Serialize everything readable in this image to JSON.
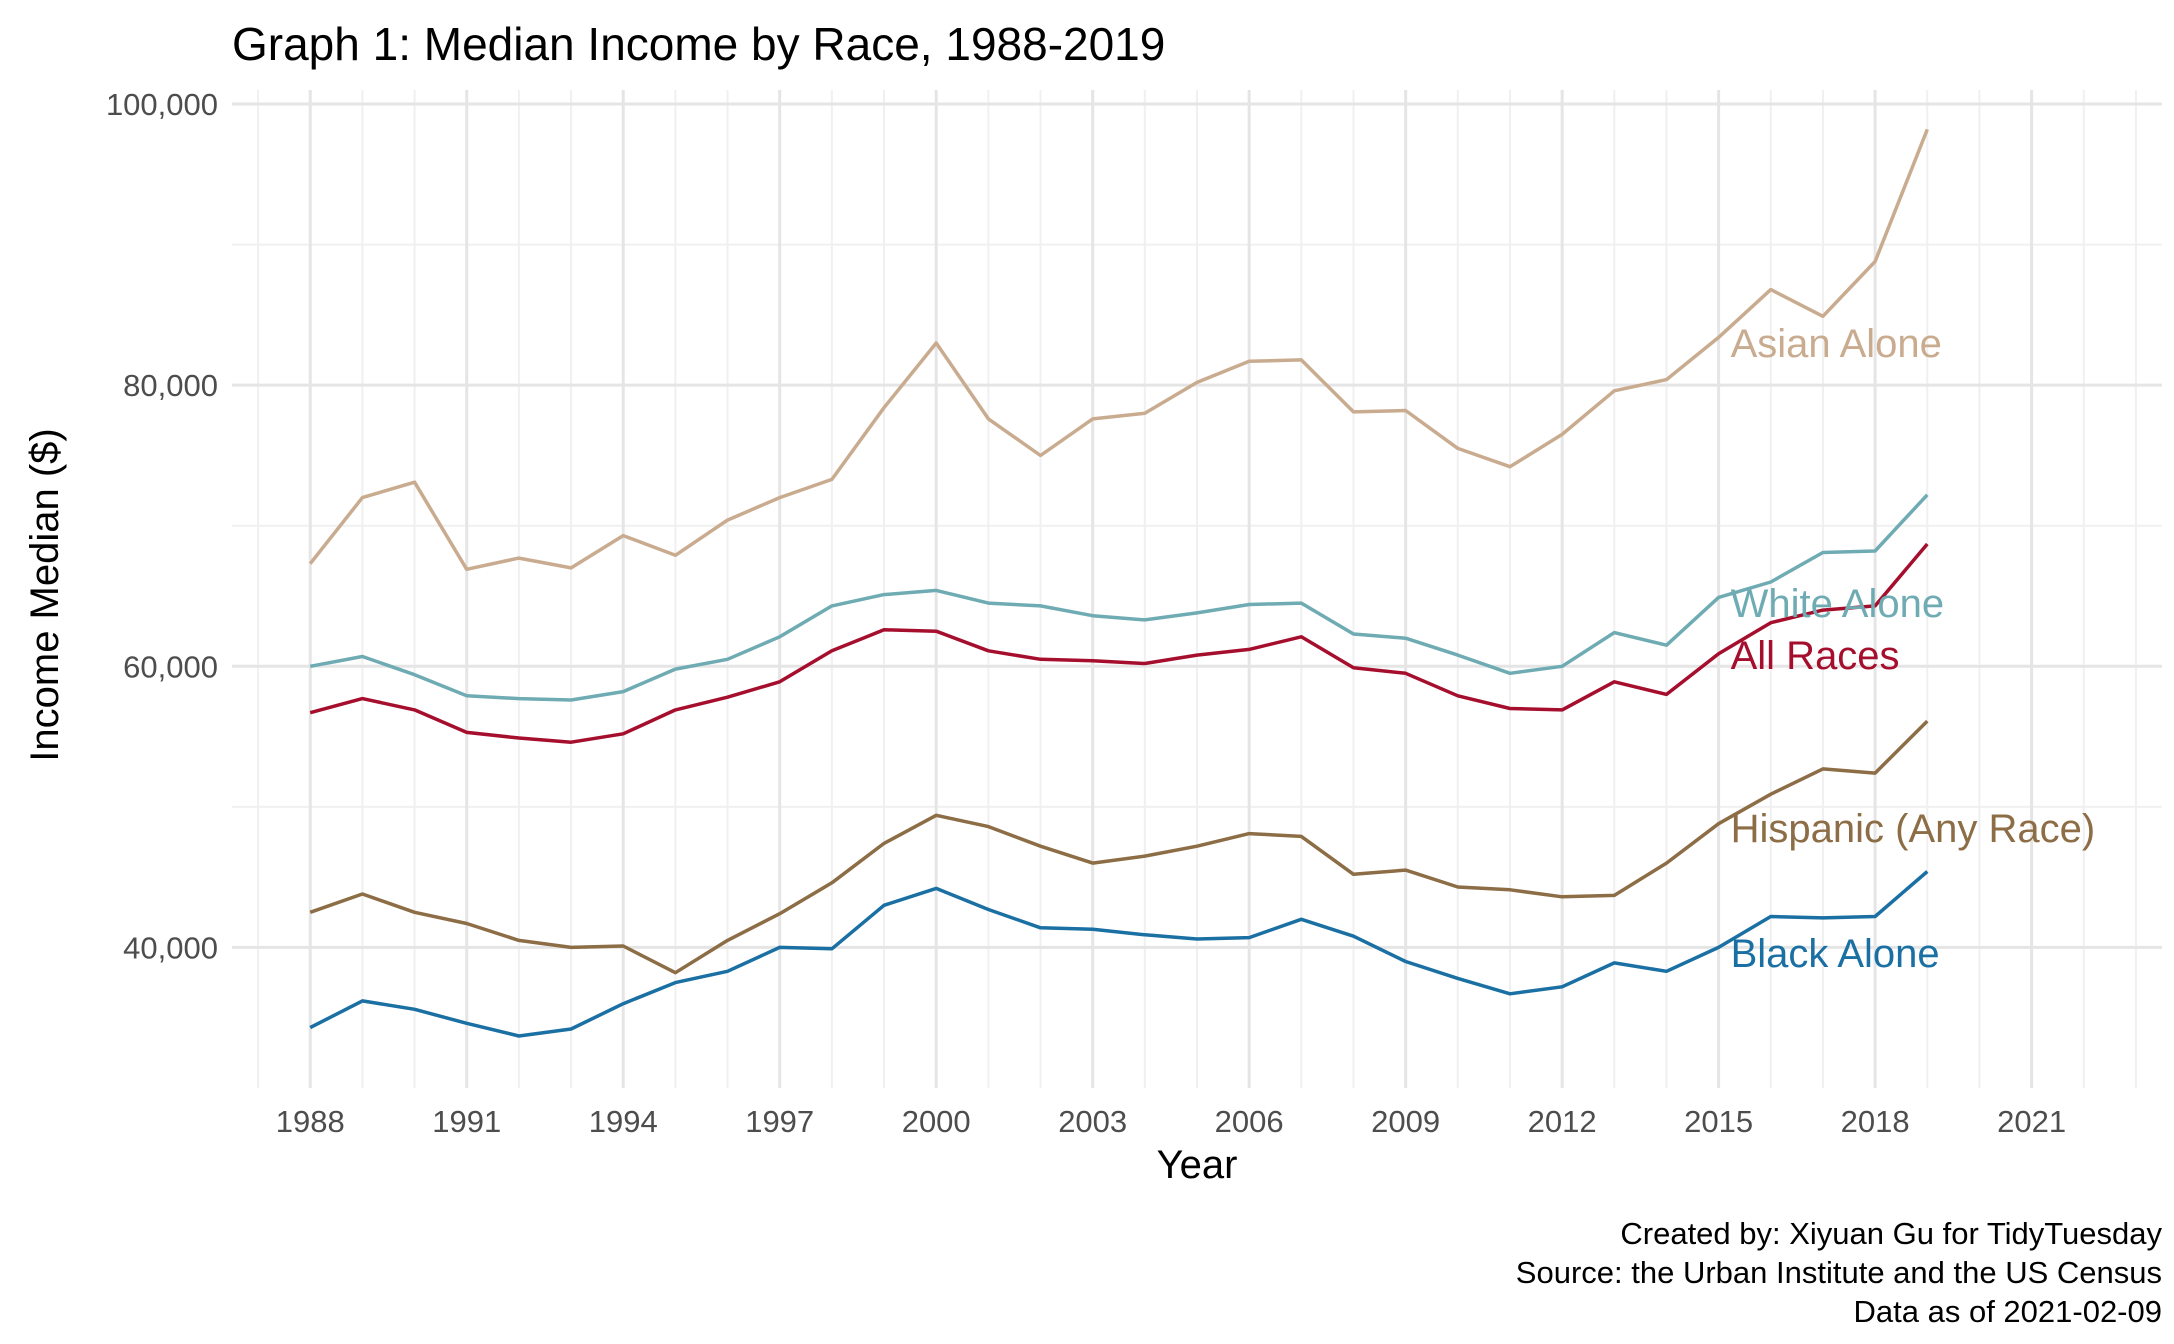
{
  "chart_data": {
    "type": "line",
    "title": "Graph 1: Median Income by Race, 1988-2019",
    "xlabel": "Year",
    "ylabel": "Income Median ($)",
    "xlim": [
      1986.5,
      2023.5
    ],
    "ylim": [
      30000,
      101000
    ],
    "x_ticks": [
      "1988",
      "1991",
      "1994",
      "1997",
      "2000",
      "2003",
      "2006",
      "2009",
      "2012",
      "2015",
      "2018",
      "2021"
    ],
    "y_ticks": [
      "40,000",
      "60,000",
      "80,000",
      "100,000"
    ],
    "grid": true,
    "legend": "direct labels at series ends",
    "x": [
      1988,
      1989,
      1990,
      1991,
      1992,
      1993,
      1994,
      1995,
      1996,
      1997,
      1998,
      1999,
      2000,
      2001,
      2002,
      2003,
      2004,
      2005,
      2006,
      2007,
      2008,
      2009,
      2010,
      2011,
      2012,
      2013,
      2014,
      2015,
      2016,
      2017,
      2018,
      2019
    ],
    "series": [
      {
        "name": "Asian Alone",
        "color": "#c9ab8f",
        "label_value": 83000,
        "values": [
          67300,
          72000,
          73100,
          66900,
          67700,
          67000,
          69300,
          67900,
          70400,
          72000,
          73300,
          78400,
          83000,
          77600,
          75000,
          77600,
          78000,
          80200,
          81700,
          81800,
          78100,
          78200,
          75500,
          74200,
          76500,
          79600,
          80400,
          83400,
          86800,
          84900,
          88800,
          98200
        ]
      },
      {
        "name": "White Alone",
        "color": "#6fabb3",
        "label_value": 64500,
        "values": [
          60000,
          60700,
          59400,
          57900,
          57700,
          57600,
          58200,
          59800,
          60500,
          62100,
          64300,
          65100,
          65400,
          64500,
          64300,
          63600,
          63300,
          63800,
          64400,
          64500,
          62300,
          62000,
          60800,
          59500,
          60000,
          62400,
          61500,
          64900,
          66000,
          68100,
          68200,
          72200
        ]
      },
      {
        "name": "All Races",
        "color": "#a50f2d",
        "label_value": 60800,
        "values": [
          56700,
          57700,
          56900,
          55300,
          54900,
          54600,
          55200,
          56900,
          57800,
          58900,
          61100,
          62600,
          62500,
          61100,
          60500,
          60400,
          60200,
          60800,
          61200,
          62100,
          59900,
          59500,
          57900,
          57000,
          56900,
          58900,
          58000,
          60900,
          63100,
          64000,
          64300,
          68700
        ]
      },
      {
        "name": "Hispanic (Any Race)",
        "color": "#8c6d45",
        "label_value": 48500,
        "values": [
          42500,
          43800,
          42500,
          41700,
          40500,
          40000,
          40100,
          38200,
          40500,
          42400,
          44600,
          47400,
          49400,
          48600,
          47200,
          46000,
          46500,
          47200,
          48100,
          47900,
          45200,
          45500,
          44300,
          44100,
          43600,
          43700,
          46000,
          48800,
          50900,
          52700,
          52400,
          56100
        ]
      },
      {
        "name": "Black Alone",
        "color": "#1a6fa3",
        "label_value": 39600,
        "values": [
          34300,
          36200,
          35600,
          34600,
          33700,
          34200,
          36000,
          37500,
          38300,
          40000,
          39900,
          43000,
          44200,
          42700,
          41400,
          41300,
          40900,
          40600,
          40700,
          42000,
          40800,
          39000,
          37800,
          36700,
          37200,
          38900,
          38300,
          40000,
          42200,
          42100,
          42200,
          45400
        ]
      }
    ]
  },
  "caption": {
    "line1": "Created by: Xiyuan Gu for TidyTuesday",
    "line2": "Source: the Urban Institute and the US Census",
    "line3": "Data as of 2021-02-09"
  }
}
